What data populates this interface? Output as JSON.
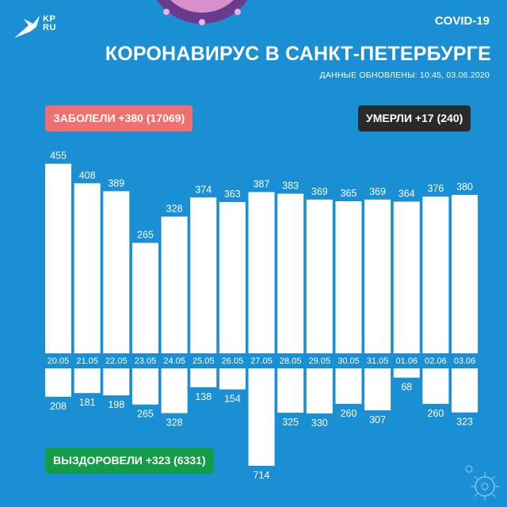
{
  "header": {
    "covid_label": "COVID-19",
    "title": "КОРОНАВИРУС В САНКТ-ПЕТЕРБУРГЕ",
    "updated": "ДАННЫЕ ОБНОВЛЕНЫ: 10:45, 03.06.2020",
    "logo_text_line1": "KP",
    "logo_text_line2": "RU"
  },
  "badges": {
    "cases": "ЗАБОЛЕЛИ +380 (17069)",
    "deaths": "УМЕРЛИ +17 (240)",
    "recovered": "ВЫЗДОРОВЕЛИ +323 (6331)"
  },
  "colors": {
    "background": "#1a8fd4",
    "bars": "#ffffff",
    "cases_badge": "#f07070",
    "deaths_badge": "#2a2a2a",
    "recovered_badge": "#159c48"
  },
  "chart_data": {
    "type": "bar",
    "categories": [
      "20.05",
      "21.05",
      "22.05",
      "23.05",
      "24.05",
      "25.05",
      "26.05",
      "27.05",
      "28.05",
      "29.05",
      "30.05",
      "31.05",
      "01.06",
      "02.06",
      "03.06"
    ],
    "series": [
      {
        "name": "ЗАБОЛЕЛИ",
        "values": [
          455,
          408,
          389,
          265,
          328,
          374,
          363,
          387,
          383,
          369,
          365,
          369,
          364,
          376,
          380
        ]
      },
      {
        "name": "ВЫЗДОРОВЕЛИ",
        "values": [
          208,
          181,
          198,
          265,
          328,
          138,
          154,
          714,
          325,
          330,
          260,
          307,
          68,
          260,
          323
        ]
      }
    ]
  }
}
